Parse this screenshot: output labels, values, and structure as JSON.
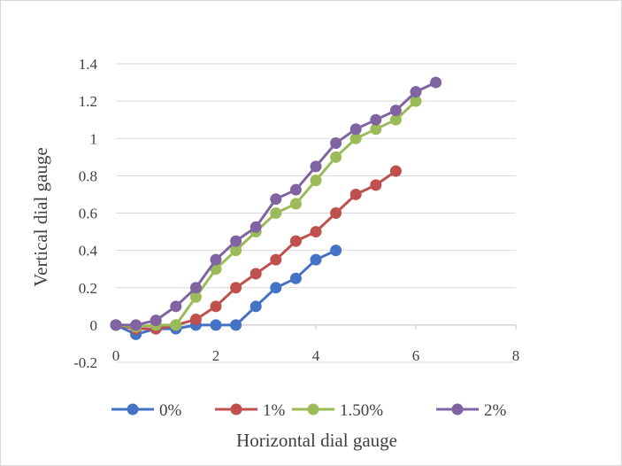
{
  "chart_data": {
    "type": "line",
    "title": "",
    "xlabel": "Horizontal dial gauge",
    "ylabel": "Vertical dial gauge",
    "xlim": [
      0,
      8
    ],
    "ylim": [
      -0.2,
      1.4
    ],
    "x_ticks": [
      0,
      2,
      4,
      6,
      8
    ],
    "x_tick_labels": [
      "0",
      "2",
      "4",
      "6",
      "8"
    ],
    "y_ticks": [
      -0.2,
      0,
      0.2,
      0.4,
      0.6,
      0.8,
      1,
      1.2,
      1.4
    ],
    "y_tick_labels": [
      "-0.2",
      "0",
      "0.2",
      "0.4",
      "0.6",
      "0.8",
      "1",
      "1.2",
      "1.4"
    ],
    "grid": "horizontal",
    "legend_position": "bottom",
    "series": [
      {
        "name": "0%",
        "color": "#4472c4",
        "x": [
          0,
          0.4,
          0.8,
          1.2,
          1.6,
          2.0,
          2.4,
          2.8,
          3.2,
          3.6,
          4.0,
          4.4
        ],
        "y": [
          0,
          -0.05,
          -0.02,
          -0.02,
          0,
          0,
          0,
          0.1,
          0.2,
          0.25,
          0.35,
          0.4
        ]
      },
      {
        "name": "1%",
        "color": "#c0504d",
        "x": [
          0,
          0.4,
          0.8,
          1.2,
          1.6,
          2.0,
          2.4,
          2.8,
          3.2,
          3.6,
          4.0,
          4.4,
          4.8,
          5.2,
          5.6
        ],
        "y": [
          0,
          -0.02,
          -0.02,
          0,
          0.03,
          0.1,
          0.2,
          0.275,
          0.35,
          0.45,
          0.5,
          0.6,
          0.7,
          0.75,
          0.825
        ]
      },
      {
        "name": "1.50%",
        "color": "#9bbb59",
        "x": [
          0,
          0.4,
          0.8,
          1.2,
          1.6,
          2.0,
          2.4,
          2.8,
          3.2,
          3.6,
          4.0,
          4.4,
          4.8,
          5.2,
          5.6,
          6.0
        ],
        "y": [
          0,
          -0.01,
          0,
          0,
          0.15,
          0.3,
          0.4,
          0.5,
          0.6,
          0.65,
          0.775,
          0.9,
          1.0,
          1.05,
          1.1,
          1.2
        ]
      },
      {
        "name": "2%",
        "color": "#8064a2",
        "x": [
          0,
          0.4,
          0.8,
          1.2,
          1.6,
          2.0,
          2.4,
          2.8,
          3.2,
          3.6,
          4.0,
          4.4,
          4.8,
          5.2,
          5.6,
          6.0,
          6.4
        ],
        "y": [
          0,
          0,
          0.025,
          0.1,
          0.2,
          0.35,
          0.45,
          0.525,
          0.675,
          0.725,
          0.85,
          0.975,
          1.05,
          1.1,
          1.15,
          1.25,
          1.3
        ]
      }
    ]
  }
}
